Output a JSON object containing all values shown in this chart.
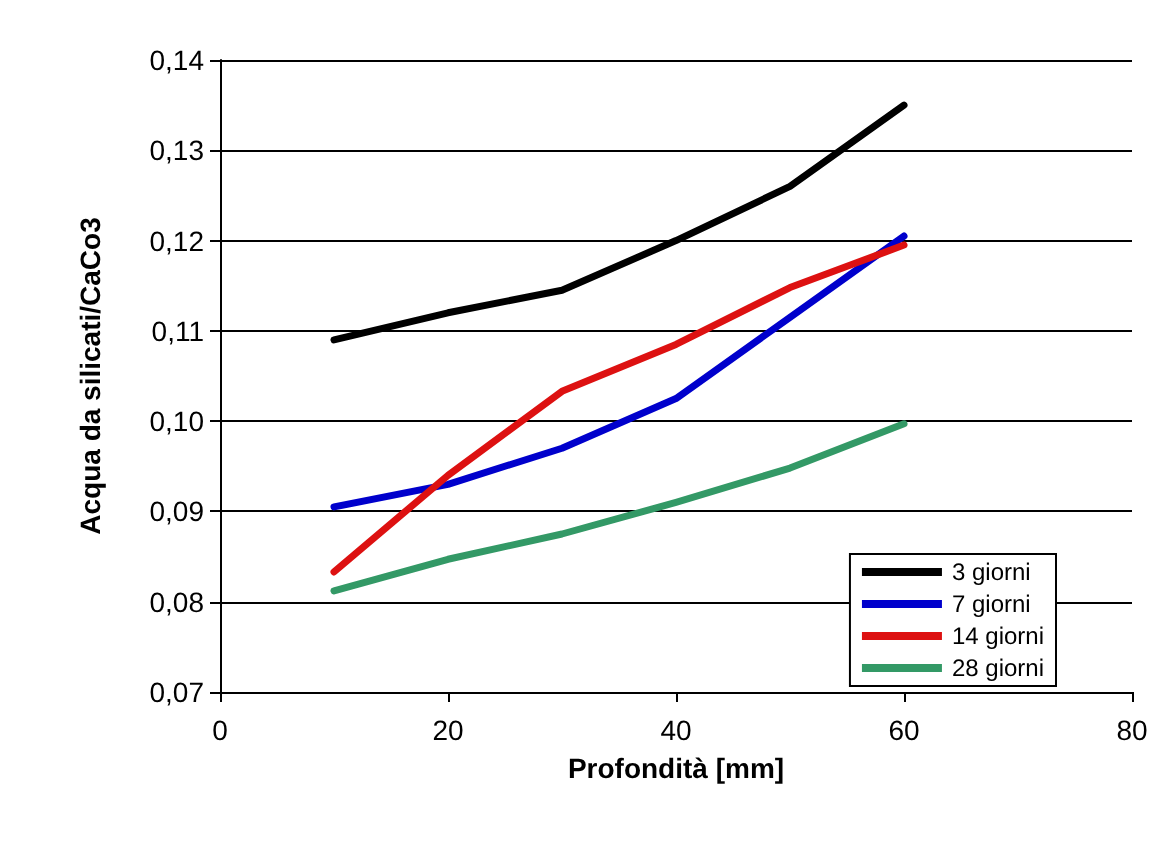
{
  "chart_data": {
    "type": "line",
    "xlabel": "Profondità [mm]",
    "ylabel": "Acqua da silicati/CaCo3",
    "x": [
      10,
      20,
      30,
      40,
      50,
      60
    ],
    "series": [
      {
        "name": "3 giorni",
        "color": "#000000",
        "values": [
          0.109,
          0.112,
          0.1145,
          0.12,
          0.126,
          0.135
        ]
      },
      {
        "name": "7 giorni",
        "color": "#0000cc",
        "values": [
          0.0905,
          0.093,
          0.097,
          0.1025,
          0.1115,
          0.1205
        ]
      },
      {
        "name": "14 giorni",
        "color": "#dd1111",
        "values": [
          0.0833,
          0.094,
          0.1033,
          0.1085,
          0.1148,
          0.1195
        ]
      },
      {
        "name": "28 giorni",
        "color": "#339966",
        "values": [
          0.0812,
          0.0847,
          0.0875,
          0.091,
          0.0948,
          0.0997
        ]
      }
    ],
    "xlim": [
      0,
      80
    ],
    "xticks": [
      0,
      20,
      40,
      60,
      80
    ],
    "ylim": [
      0.07,
      0.14
    ],
    "yticks": [
      {
        "value": 0.07,
        "label": "0,07"
      },
      {
        "value": 0.08,
        "label": "0,08"
      },
      {
        "value": 0.09,
        "label": "0,09"
      },
      {
        "value": 0.1,
        "label": "0,10"
      },
      {
        "value": 0.11,
        "label": "0,11"
      },
      {
        "value": 0.12,
        "label": "0,12"
      },
      {
        "value": 0.13,
        "label": "0,13"
      },
      {
        "value": 0.14,
        "label": "0,14"
      }
    ],
    "grid": "y",
    "legend": "bottom right",
    "marker": "none",
    "line_style": "solid"
  }
}
